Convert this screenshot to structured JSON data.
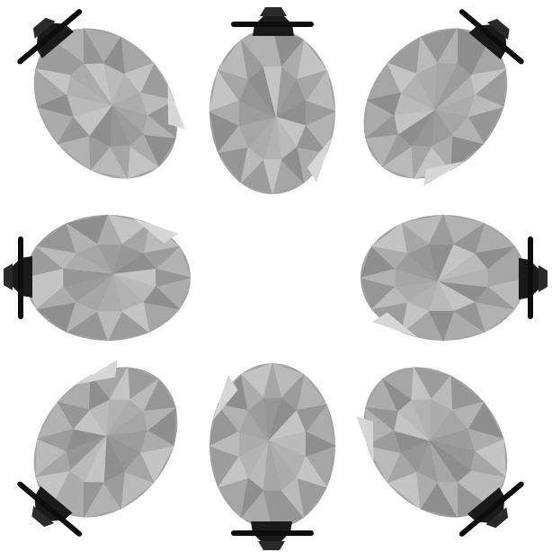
{
  "scene": {
    "background": "#ffffff",
    "object_count": 8,
    "body_colors": {
      "base": "#a3a3a3",
      "shades": [
        "#8e8e8e",
        "#969696",
        "#9c9c9c",
        "#a6a6a6",
        "#acacac",
        "#b2b2b2",
        "#bababa",
        "#c4c4c4"
      ],
      "highlight": "#d6d6d6"
    },
    "cap_colors": {
      "base": "#1a1a1a",
      "dark": "#0d0d0d",
      "edge": "#2a2a2a"
    },
    "objects": [
      {
        "name": "faceted-ovoid-top",
        "cap_direction": "up",
        "icon": "faceted-ovoid-icon"
      },
      {
        "name": "faceted-ovoid-top-right",
        "cap_direction": "up-right",
        "icon": "faceted-ovoid-icon"
      },
      {
        "name": "faceted-ovoid-right",
        "cap_direction": "right",
        "icon": "faceted-ovoid-icon"
      },
      {
        "name": "faceted-ovoid-bottom-right",
        "cap_direction": "down-right",
        "icon": "faceted-ovoid-icon"
      },
      {
        "name": "faceted-ovoid-bottom",
        "cap_direction": "down",
        "icon": "faceted-ovoid-icon"
      },
      {
        "name": "faceted-ovoid-bottom-left",
        "cap_direction": "down-left",
        "icon": "faceted-ovoid-icon"
      },
      {
        "name": "faceted-ovoid-left",
        "cap_direction": "left",
        "icon": "faceted-ovoid-icon"
      },
      {
        "name": "faceted-ovoid-top-left",
        "cap_direction": "up-left",
        "icon": "faceted-ovoid-icon"
      }
    ]
  }
}
